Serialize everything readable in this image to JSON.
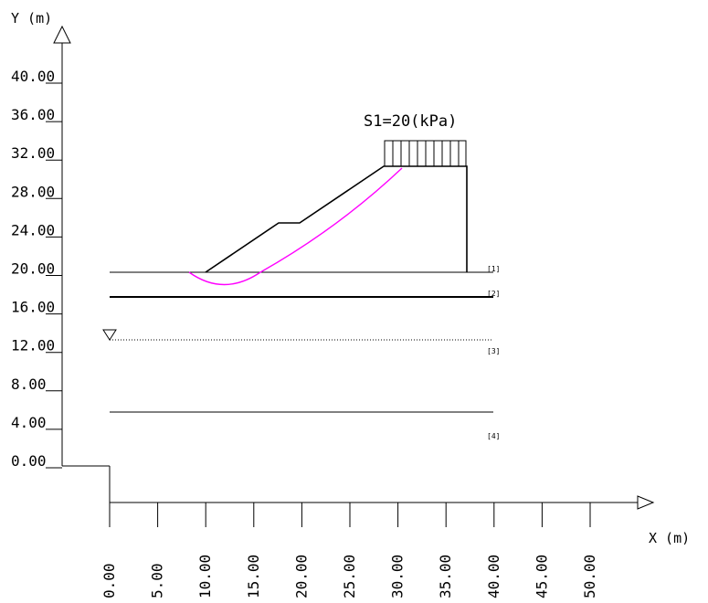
{
  "axes": {
    "y_title": "Y (m)",
    "x_title": "X (m)",
    "y_ticks": [
      "40.00",
      "36.00",
      "32.00",
      "28.00",
      "24.00",
      "20.00",
      "16.00",
      "12.00",
      "8.00",
      "4.00",
      "0.00"
    ],
    "x_ticks": [
      "0.00",
      "5.00",
      "10.00",
      "15.00",
      "20.00",
      "25.00",
      "30.00",
      "35.00",
      "40.00",
      "45.00",
      "50.00"
    ]
  },
  "load": {
    "label": "S1=20(kPa)"
  },
  "layers": [
    {
      "label": "[1]"
    },
    {
      "label": "[2]"
    },
    {
      "label": "[3]"
    },
    {
      "label": "[4]"
    }
  ],
  "colors": {
    "line": "#000000",
    "slip_surface": "#ff00ff"
  },
  "icons": {
    "water_table": "inverted-triangle-icon",
    "axis_arrows": "triangle-arrow-icon"
  }
}
